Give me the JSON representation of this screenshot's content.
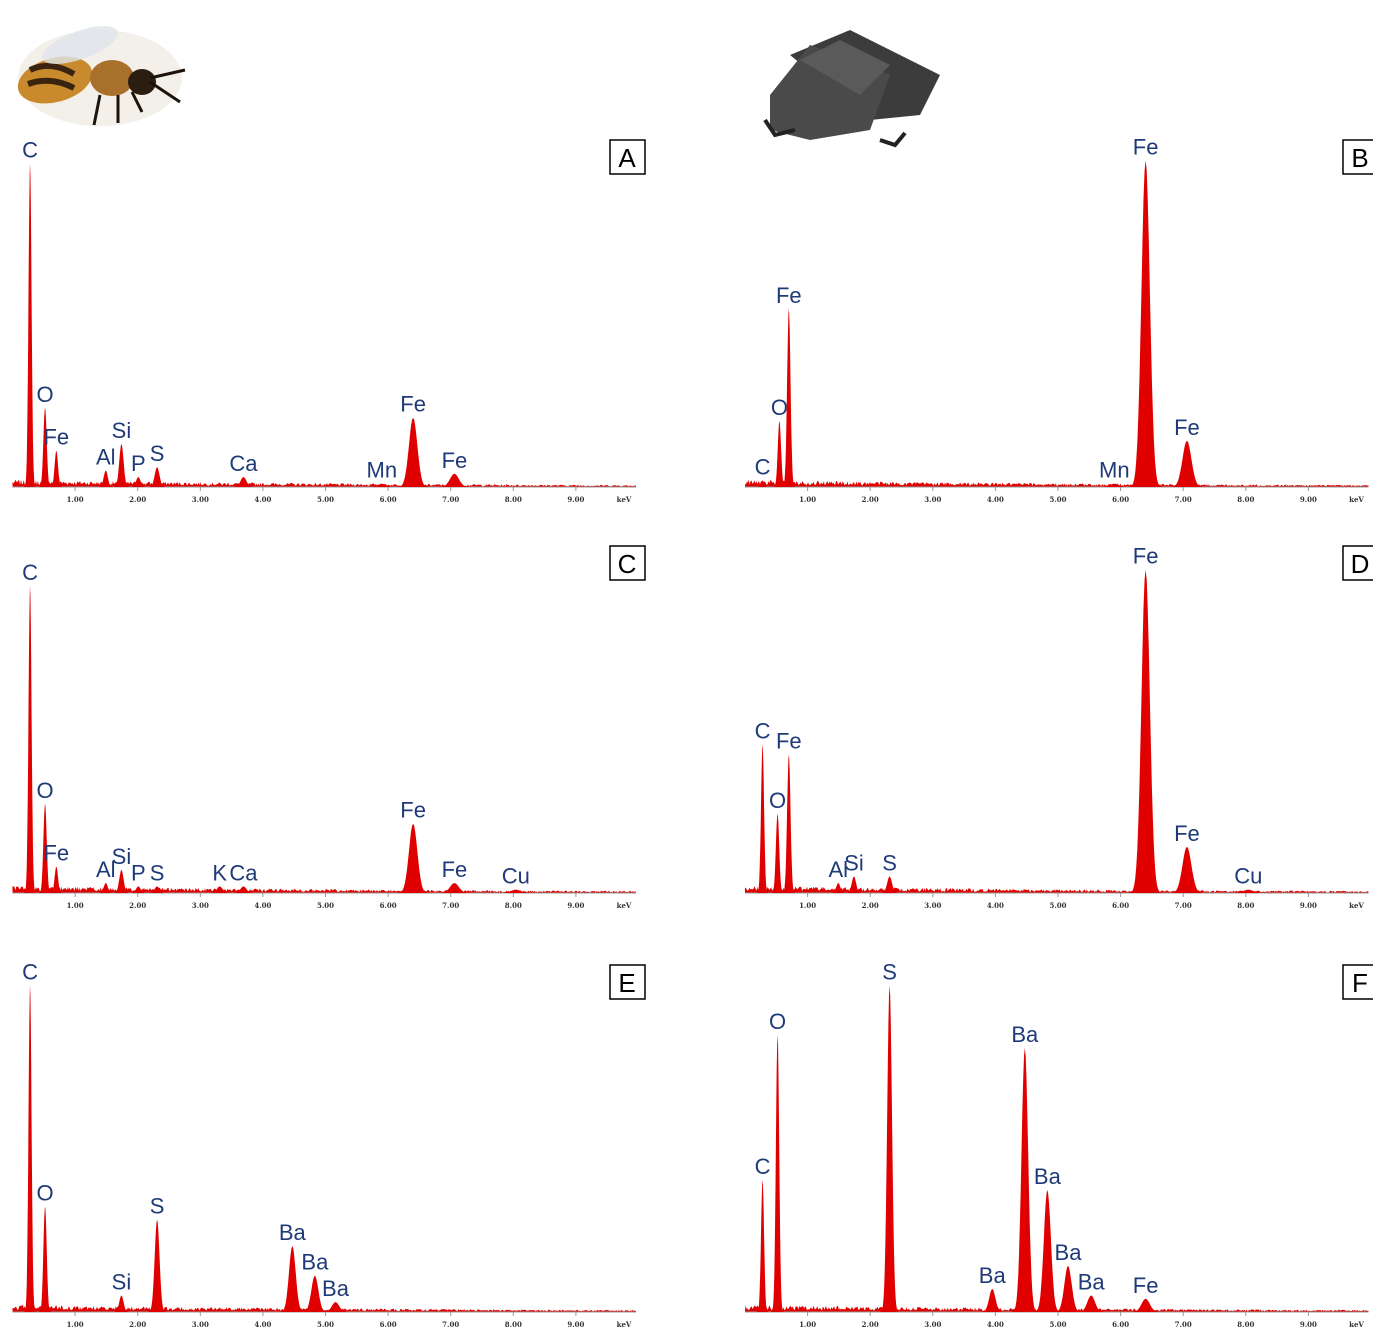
{
  "chart_data": [
    {
      "type": "spectrum",
      "panel": "A",
      "color": "#e00000",
      "xlim": [
        0,
        9.96
      ],
      "ylim": [
        0,
        100
      ],
      "x_label": "keV",
      "xticks": [
        {
          "value": 1,
          "label": "1.00"
        },
        {
          "value": 2,
          "label": "2.00"
        },
        {
          "value": 3,
          "label": "3.00"
        },
        {
          "value": 4,
          "label": "4.00"
        },
        {
          "value": 5,
          "label": "5.00"
        },
        {
          "value": 6,
          "label": "6.00"
        },
        {
          "value": 7,
          "label": "7.00"
        },
        {
          "value": 8,
          "label": "8.00"
        },
        {
          "value": 9,
          "label": "9.00"
        }
      ],
      "peaks": [
        {
          "label": "C",
          "energy": 0.28,
          "height": 98
        },
        {
          "label": "O",
          "energy": 0.52,
          "height": 24
        },
        {
          "label": "Fe",
          "energy": 0.7,
          "height": 11
        },
        {
          "label": "Al",
          "energy": 1.49,
          "height": 5
        },
        {
          "label": "Si",
          "energy": 1.74,
          "height": 13
        },
        {
          "label": "P",
          "energy": 2.01,
          "height": 3
        },
        {
          "label": "S",
          "energy": 2.31,
          "height": 6
        },
        {
          "label": "Ca",
          "energy": 3.69,
          "height": 3
        },
        {
          "label": "Mn",
          "energy": 5.9,
          "height": 1
        },
        {
          "label": "Fe",
          "energy": 6.4,
          "height": 21
        },
        {
          "label": "Fe",
          "energy": 7.06,
          "height": 4
        }
      ]
    },
    {
      "type": "spectrum",
      "panel": "B",
      "color": "#e00000",
      "xlim": [
        0,
        9.96
      ],
      "ylim": [
        0,
        100
      ],
      "x_label": "keV",
      "xticks": [
        {
          "value": 1,
          "label": "1.00"
        },
        {
          "value": 2,
          "label": "2.00"
        },
        {
          "value": 3,
          "label": "3.00"
        },
        {
          "value": 4,
          "label": "4.00"
        },
        {
          "value": 5,
          "label": "5.00"
        },
        {
          "value": 6,
          "label": "6.00"
        },
        {
          "value": 7,
          "label": "7.00"
        },
        {
          "value": 8,
          "label": "8.00"
        },
        {
          "value": 9,
          "label": "9.00"
        }
      ],
      "peaks": [
        {
          "label": "C",
          "energy": 0.28,
          "height": 2
        },
        {
          "label": "O",
          "energy": 0.55,
          "height": 20
        },
        {
          "label": "Fe",
          "energy": 0.7,
          "height": 54
        },
        {
          "label": "Mn",
          "energy": 5.9,
          "height": 1
        },
        {
          "label": "Fe",
          "energy": 6.4,
          "height": 99
        },
        {
          "label": "Fe",
          "energy": 7.06,
          "height": 14
        }
      ]
    },
    {
      "type": "spectrum",
      "panel": "C",
      "color": "#e00000",
      "xlim": [
        0,
        9.96
      ],
      "ylim": [
        0,
        100
      ],
      "x_label": "keV",
      "xticks": [
        {
          "value": 1,
          "label": "1.00"
        },
        {
          "value": 2,
          "label": "2.00"
        },
        {
          "value": 3,
          "label": "3.00"
        },
        {
          "value": 4,
          "label": "4.00"
        },
        {
          "value": 5,
          "label": "5.00"
        },
        {
          "value": 6,
          "label": "6.00"
        },
        {
          "value": 7,
          "label": "7.00"
        },
        {
          "value": 8,
          "label": "8.00"
        },
        {
          "value": 9,
          "label": "9.00"
        }
      ],
      "peaks": [
        {
          "label": "C",
          "energy": 0.28,
          "height": 93
        },
        {
          "label": "O",
          "energy": 0.52,
          "height": 27
        },
        {
          "label": "Fe",
          "energy": 0.7,
          "height": 8
        },
        {
          "label": "Al",
          "energy": 1.49,
          "height": 3
        },
        {
          "label": "Si",
          "energy": 1.74,
          "height": 7
        },
        {
          "label": "P",
          "energy": 2.01,
          "height": 2
        },
        {
          "label": "S",
          "energy": 2.31,
          "height": 2
        },
        {
          "label": "K",
          "energy": 3.31,
          "height": 2
        },
        {
          "label": "Ca",
          "energy": 3.69,
          "height": 2
        },
        {
          "label": "Fe",
          "energy": 6.4,
          "height": 21
        },
        {
          "label": "Fe",
          "energy": 7.06,
          "height": 3
        },
        {
          "label": "Cu",
          "energy": 8.04,
          "height": 1
        }
      ]
    },
    {
      "type": "spectrum",
      "panel": "D",
      "color": "#e00000",
      "xlim": [
        0,
        9.96
      ],
      "ylim": [
        0,
        100
      ],
      "x_label": "keV",
      "xticks": [
        {
          "value": 1,
          "label": "1.00"
        },
        {
          "value": 2,
          "label": "2.00"
        },
        {
          "value": 3,
          "label": "3.00"
        },
        {
          "value": 4,
          "label": "4.00"
        },
        {
          "value": 5,
          "label": "5.00"
        },
        {
          "value": 6,
          "label": "6.00"
        },
        {
          "value": 7,
          "label": "7.00"
        },
        {
          "value": 8,
          "label": "8.00"
        },
        {
          "value": 9,
          "label": "9.00"
        }
      ],
      "peaks": [
        {
          "label": "C",
          "energy": 0.28,
          "height": 45
        },
        {
          "label": "O",
          "energy": 0.52,
          "height": 24
        },
        {
          "label": "Fe",
          "energy": 0.7,
          "height": 42
        },
        {
          "label": "Al",
          "energy": 1.49,
          "height": 3
        },
        {
          "label": "Si",
          "energy": 1.74,
          "height": 5
        },
        {
          "label": "S",
          "energy": 2.31,
          "height": 5
        },
        {
          "label": "Fe",
          "energy": 6.4,
          "height": 98
        },
        {
          "label": "Fe",
          "energy": 7.06,
          "height": 14
        },
        {
          "label": "Cu",
          "energy": 8.04,
          "height": 1
        }
      ]
    },
    {
      "type": "spectrum",
      "panel": "E",
      "color": "#e00000",
      "xlim": [
        0,
        9.96
      ],
      "ylim": [
        0,
        100
      ],
      "x_label": "keV",
      "xticks": [
        {
          "value": 1,
          "label": "1.00"
        },
        {
          "value": 2,
          "label": "2.00"
        },
        {
          "value": 3,
          "label": "3.00"
        },
        {
          "value": 4,
          "label": "4.00"
        },
        {
          "value": 5,
          "label": "5.00"
        },
        {
          "value": 6,
          "label": "6.00"
        },
        {
          "value": 7,
          "label": "7.00"
        },
        {
          "value": 8,
          "label": "8.00"
        },
        {
          "value": 9,
          "label": "9.00"
        }
      ],
      "peaks": [
        {
          "label": "C",
          "energy": 0.28,
          "height": 99
        },
        {
          "label": "O",
          "energy": 0.52,
          "height": 32
        },
        {
          "label": "Si",
          "energy": 1.74,
          "height": 5
        },
        {
          "label": "S",
          "energy": 2.31,
          "height": 28
        },
        {
          "label": "Ba",
          "energy": 4.47,
          "height": 20
        },
        {
          "label": "Ba",
          "energy": 4.83,
          "height": 11
        },
        {
          "label": "Ba",
          "energy": 5.16,
          "height": 3
        }
      ]
    },
    {
      "type": "spectrum",
      "panel": "F",
      "color": "#e00000",
      "xlim": [
        0,
        9.96
      ],
      "ylim": [
        0,
        100
      ],
      "x_label": "keV",
      "xticks": [
        {
          "value": 1,
          "label": "1.00"
        },
        {
          "value": 2,
          "label": "2.00"
        },
        {
          "value": 3,
          "label": "3.00"
        },
        {
          "value": 4,
          "label": "4.00"
        },
        {
          "value": 5,
          "label": "5.00"
        },
        {
          "value": 6,
          "label": "6.00"
        },
        {
          "value": 7,
          "label": "7.00"
        },
        {
          "value": 8,
          "label": "8.00"
        },
        {
          "value": 9,
          "label": "9.00"
        }
      ],
      "peaks": [
        {
          "label": "C",
          "energy": 0.28,
          "height": 40
        },
        {
          "label": "O",
          "energy": 0.52,
          "height": 84
        },
        {
          "label": "S",
          "energy": 2.31,
          "height": 99
        },
        {
          "label": "Ba",
          "energy": 3.95,
          "height": 7
        },
        {
          "label": "Ba",
          "energy": 4.47,
          "height": 80
        },
        {
          "label": "Ba",
          "energy": 4.83,
          "height": 37
        },
        {
          "label": "Ba",
          "energy": 5.16,
          "height": 14
        },
        {
          "label": "Ba",
          "energy": 5.53,
          "height": 5
        },
        {
          "label": "Fe",
          "energy": 6.4,
          "height": 4
        }
      ]
    }
  ]
}
